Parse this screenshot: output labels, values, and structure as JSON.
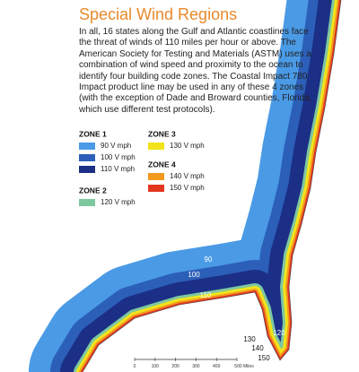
{
  "title": "Special Wind Regions",
  "body": "In all, 16 states along the Gulf and Atlantic coastlines face the threat of winds of 110 miles per hour or above. The American Society for Testing and Materials (ASTM) uses a combination of wind speed and proximity to the ocean to identify four building code zones. The Coastal Impact 780 Impact product line may be used in any of these 4 zones (with the exception of Dade and Broward counties, Florida, which use different test protocols).",
  "legend": [
    {
      "zone": "ZONE 1",
      "items": [
        {
          "label": "90 V mph",
          "color": "#4a9ae6"
        },
        {
          "label": "100 V mph",
          "color": "#2c5fb8"
        },
        {
          "label": "110 V mph",
          "color": "#1b2f86"
        }
      ]
    },
    {
      "zone": "ZONE 2",
      "items": [
        {
          "label": "120 V mph",
          "color": "#7ec8a0"
        }
      ]
    },
    {
      "zone": "ZONE 3",
      "items": [
        {
          "label": "130 V mph",
          "color": "#f2e31b"
        }
      ]
    },
    {
      "zone": "ZONE 4",
      "items": [
        {
          "label": "140 V mph",
          "color": "#f39a1f"
        },
        {
          "label": "150 V mph",
          "color": "#e2371f"
        }
      ]
    }
  ],
  "map_labels": [
    "90",
    "100",
    "110",
    "120",
    "130",
    "140",
    "150"
  ],
  "scale_labels": [
    "0",
    "100",
    "200",
    "300",
    "400",
    "500 Miles"
  ]
}
